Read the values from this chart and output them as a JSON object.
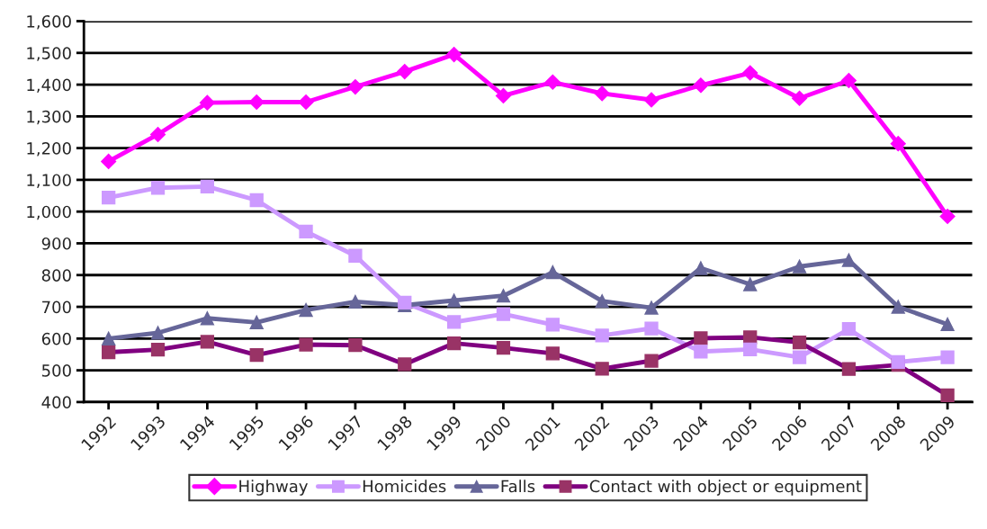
{
  "chart_data": {
    "type": "line",
    "categories": [
      "1992",
      "1993",
      "1994",
      "1995",
      "1996",
      "1997",
      "1998",
      "1999",
      "2000",
      "2001",
      "2002",
      "2003",
      "2004",
      "2005",
      "2006",
      "2007",
      "2008",
      "2009"
    ],
    "series": [
      {
        "name": "Highway",
        "color": "#ff00ff",
        "marker": "diamond",
        "values": [
          1158,
          1243,
          1343,
          1345,
          1345,
          1393,
          1441,
          1495,
          1365,
          1408,
          1372,
          1352,
          1398,
          1437,
          1357,
          1413,
          1214,
          985
        ]
      },
      {
        "name": "Homicides",
        "color": "#cc99ff",
        "marker": "square",
        "values": [
          1044,
          1075,
          1079,
          1036,
          937,
          861,
          713,
          652,
          677,
          644,
          610,
          632,
          559,
          566,
          541,
          630,
          526,
          541
        ]
      },
      {
        "name": "Falls",
        "color": "#666699",
        "marker": "triangle",
        "values": [
          600,
          618,
          664,
          651,
          690,
          716,
          705,
          720,
          735,
          809,
          718,
          697,
          822,
          771,
          827,
          847,
          700,
          645
        ]
      },
      {
        "name": "Contact with object or equipment",
        "color": "#800080",
        "marker": "square",
        "values": [
          557,
          565,
          590,
          548,
          581,
          579,
          519,
          585,
          571,
          553,
          505,
          530,
          601,
          604,
          588,
          504,
          517,
          421
        ]
      }
    ],
    "ylim": [
      400,
      1600
    ],
    "yticks": [
      {
        "value": 400,
        "label": "400"
      },
      {
        "value": 500,
        "label": "500"
      },
      {
        "value": 600,
        "label": "600"
      },
      {
        "value": 700,
        "label": "700"
      },
      {
        "value": 800,
        "label": "800"
      },
      {
        "value": 900,
        "label": "900"
      },
      {
        "value": 1000,
        "label": "1,000"
      },
      {
        "value": 1100,
        "label": "1,100"
      },
      {
        "value": 1200,
        "label": "1,200"
      },
      {
        "value": 1300,
        "label": "1,300"
      },
      {
        "value": 1400,
        "label": "1,400"
      },
      {
        "value": 1500,
        "label": "1,500"
      },
      {
        "value": 1600,
        "label": "1,600"
      }
    ],
    "grid": "y",
    "legend": "bottom",
    "line_style": "solid"
  }
}
